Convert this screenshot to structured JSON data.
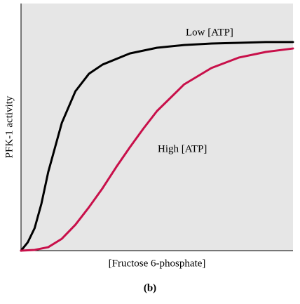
{
  "chart_data": {
    "type": "line",
    "panel_label": "(b)",
    "x_label": "[Fructose 6-phosphate]",
    "y_label": "PFK-1 activity",
    "xlim": [
      0,
      10
    ],
    "ylim": [
      0,
      1
    ],
    "background": "#e6e6e6",
    "series": [
      {
        "name": "Low [ATP]",
        "color": "#000000",
        "x": [
          0,
          0.25,
          0.5,
          0.75,
          1,
          1.5,
          2,
          2.5,
          3,
          4,
          5,
          6,
          7,
          8,
          9,
          10
        ],
        "values": [
          0,
          0.034,
          0.091,
          0.19,
          0.318,
          0.517,
          0.645,
          0.716,
          0.753,
          0.798,
          0.821,
          0.832,
          0.838,
          0.841,
          0.844,
          0.844
        ]
      },
      {
        "name": "High [ATP]",
        "color": "#c8104a",
        "x": [
          0,
          0.5,
          1,
          1.5,
          2,
          2.5,
          3,
          3.5,
          4,
          4.5,
          5,
          6,
          7,
          8,
          9,
          10
        ],
        "values": [
          0,
          0.003,
          0.014,
          0.048,
          0.105,
          0.176,
          0.253,
          0.338,
          0.418,
          0.494,
          0.565,
          0.673,
          0.739,
          0.781,
          0.804,
          0.818
        ]
      }
    ]
  }
}
